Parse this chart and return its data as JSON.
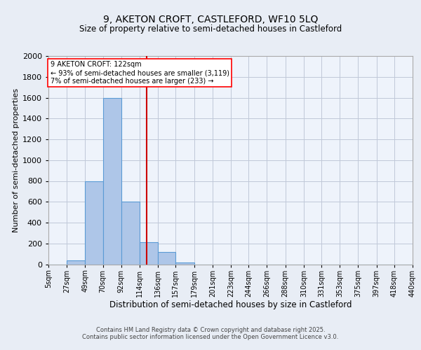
{
  "title1": "9, AKETON CROFT, CASTLEFORD, WF10 5LQ",
  "title2": "Size of property relative to semi-detached houses in Castleford",
  "xlabel": "Distribution of semi-detached houses by size in Castleford",
  "ylabel": "Number of semi-detached properties",
  "bin_edges": [
    5,
    27,
    49,
    70,
    92,
    114,
    136,
    157,
    179,
    201,
    223,
    244,
    266,
    288,
    310,
    331,
    353,
    375,
    397,
    418,
    440
  ],
  "bin_labels": [
    "5sqm",
    "27sqm",
    "49sqm",
    "70sqm",
    "92sqm",
    "114sqm",
    "136sqm",
    "157sqm",
    "179sqm",
    "201sqm",
    "223sqm",
    "244sqm",
    "266sqm",
    "288sqm",
    "310sqm",
    "331sqm",
    "353sqm",
    "375sqm",
    "397sqm",
    "418sqm",
    "440sqm"
  ],
  "bar_heights": [
    0,
    40,
    800,
    1600,
    600,
    210,
    120,
    20,
    0,
    0,
    0,
    0,
    0,
    0,
    0,
    0,
    0,
    0,
    0,
    0
  ],
  "bar_color": "#aec6e8",
  "bar_edge_color": "#5b9bd5",
  "property_size": 122,
  "red_line_color": "#cc0000",
  "annotation_title": "9 AKETON CROFT: 122sqm",
  "annotation_line1": "← 93% of semi-detached houses are smaller (3,119)",
  "annotation_line2": "7% of semi-detached houses are larger (233) →",
  "ylim": [
    0,
    2000
  ],
  "background_color": "#e8edf5",
  "plot_bg_color": "#eef3fb",
  "footer1": "Contains HM Land Registry data © Crown copyright and database right 2025.",
  "footer2": "Contains public sector information licensed under the Open Government Licence v3.0."
}
